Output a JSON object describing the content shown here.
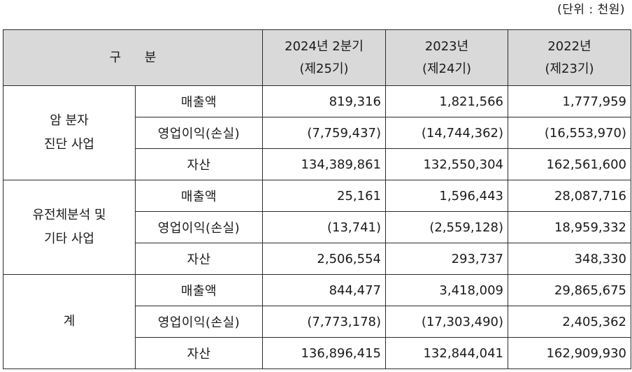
{
  "unit_label": "(단위 : 천원)",
  "header": {
    "category": "구 분",
    "columns": [
      {
        "line1": "2024년 2분기",
        "line2": "(제25기)"
      },
      {
        "line1": "2023년",
        "line2": "(제24기)"
      },
      {
        "line1": "2022년",
        "line2": "(제23기)"
      }
    ]
  },
  "segments": [
    {
      "name_line1": "암 분자",
      "name_line2": "진단 사업",
      "rows": [
        {
          "item": "매출액",
          "values": [
            "819,316",
            "1,821,566",
            "1,777,959"
          ]
        },
        {
          "item": "영업이익(손실)",
          "values": [
            "(7,759,437)",
            "(14,744,362)",
            "(16,553,970)"
          ]
        },
        {
          "item": "자산",
          "values": [
            "134,389,861",
            "132,550,304",
            "162,561,600"
          ]
        }
      ]
    },
    {
      "name_line1": "유전체분석 및",
      "name_line2": "기타 사업",
      "rows": [
        {
          "item": "매출액",
          "values": [
            "25,161",
            "1,596,443",
            "28,087,716"
          ]
        },
        {
          "item": "영업이익(손실)",
          "values": [
            "(13,741)",
            "(2,559,128)",
            "18,959,332"
          ]
        },
        {
          "item": "자산",
          "values": [
            "2,506,554",
            "293,737",
            "348,330"
          ]
        }
      ]
    },
    {
      "name_line1": "계",
      "name_line2": "",
      "rows": [
        {
          "item": "매출액",
          "values": [
            "844,477",
            "3,418,009",
            "29,865,675"
          ]
        },
        {
          "item": "영업이익(손실)",
          "values": [
            "(7,773,178)",
            "(17,303,490)",
            "2,405,362"
          ]
        },
        {
          "item": "자산",
          "values": [
            "136,896,415",
            "132,844,041",
            "162,909,930"
          ]
        }
      ]
    }
  ]
}
